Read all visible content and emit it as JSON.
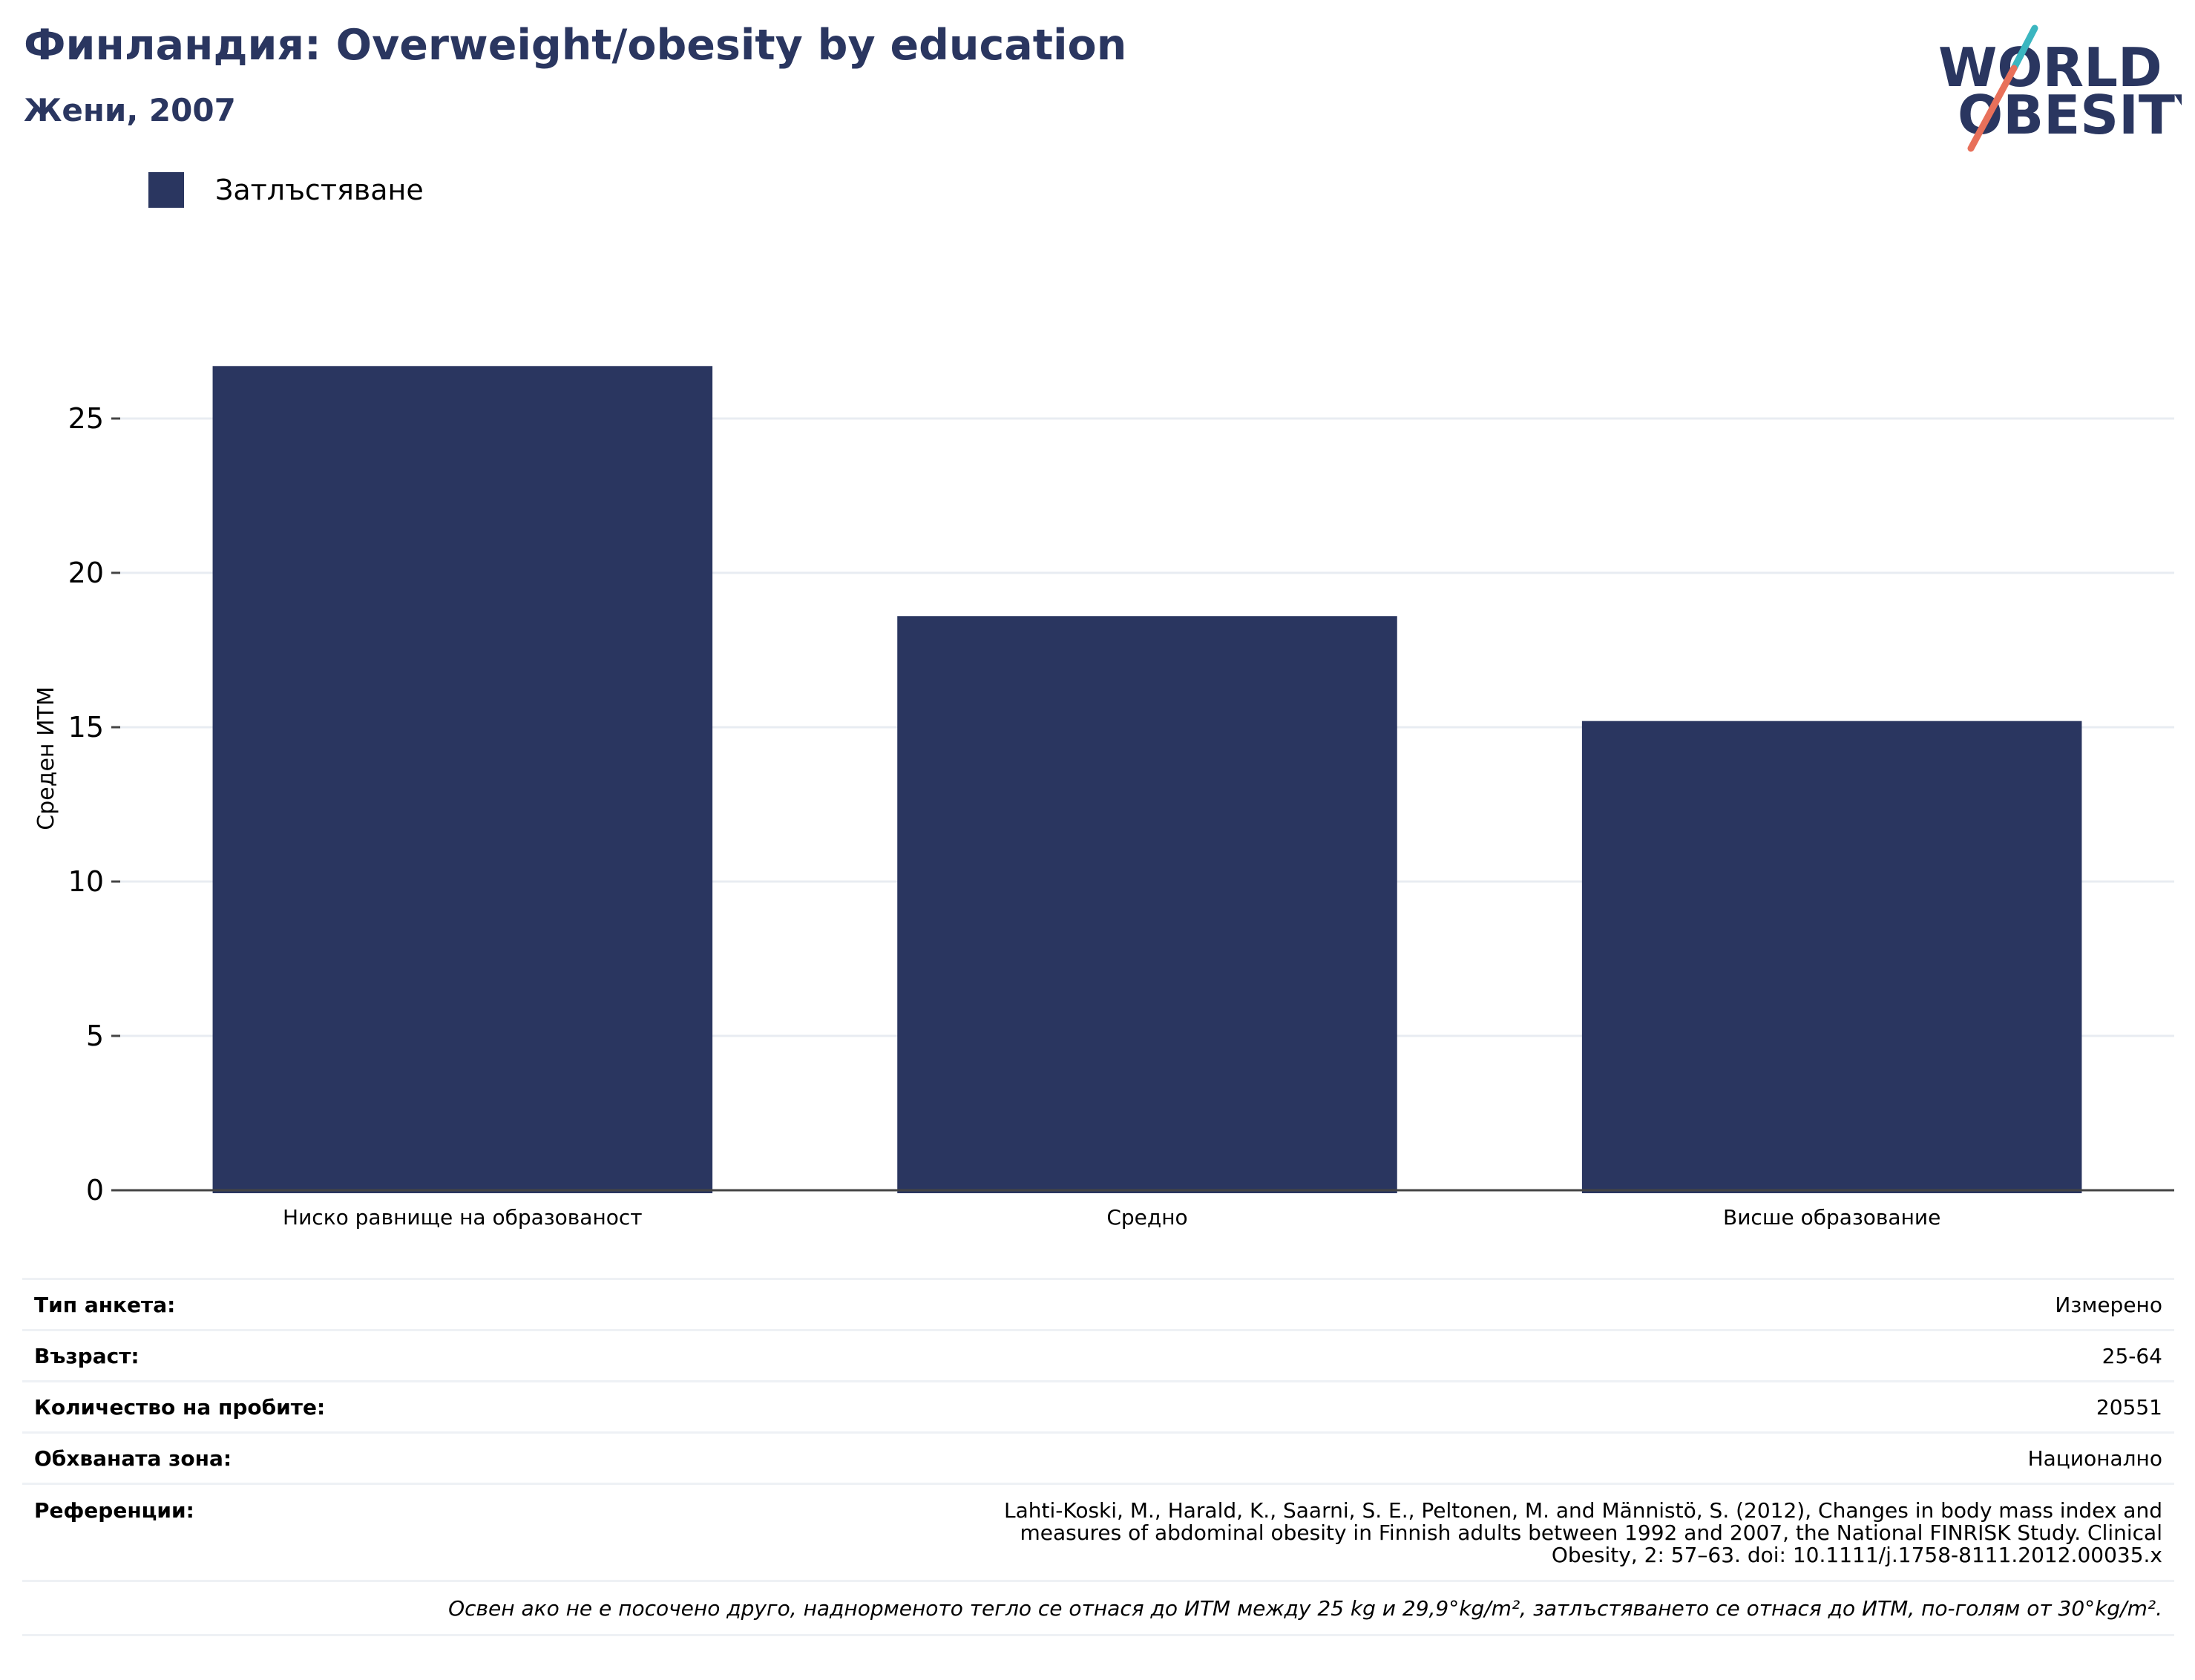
{
  "header": {
    "title": "Финландия: Overweight/obesity by education",
    "subtitle": "Жени, 2007"
  },
  "logo": {
    "line1": "WORLD",
    "line2": "OBESITY"
  },
  "legend": {
    "label": "Затлъстяване",
    "color": "#2a3660"
  },
  "chart_data": {
    "type": "bar",
    "categories": [
      "Ниско равнище на образованост",
      "Средно",
      "Висше образование"
    ],
    "series": [
      {
        "name": "Затлъстяване",
        "color": "#2a3660",
        "values": [
          26.7,
          18.6,
          15.2
        ]
      }
    ],
    "ylabel": "Среден ИТМ",
    "ylim": [
      0,
      30
    ],
    "yticks": [
      0,
      5,
      10,
      15,
      20,
      25
    ],
    "grid": true,
    "legend_position": "top-left"
  },
  "info": {
    "survey_type_label": "Тип анкета:",
    "survey_type_value": "Измерено",
    "age_label": "Възраст:",
    "age_value": "25-64",
    "sample_label": "Количество на пробите:",
    "sample_value": "20551",
    "area_label": "Обхваната зона:",
    "area_value": "Национално",
    "ref_label": "Референции:",
    "ref_value": "Lahti-Koski, M., Harald, K., Saarni, S. E., Peltonen, M. and Männistö, S. (2012), Changes in body mass index and measures of abdominal obesity in Finnish adults between 1992 and 2007, the National FINRISK Study. Clinical Obesity, 2: 57–63. doi: 10.1111/j.1758-8111.2012.00035.x",
    "note": "Освен ако не е посочено друго, наднорменото тегло се отнася до ИТМ между 25 kg и 29,9°kg/m², затлъстяването се отнася до ИТМ, по-голям от 30°kg/m²."
  }
}
